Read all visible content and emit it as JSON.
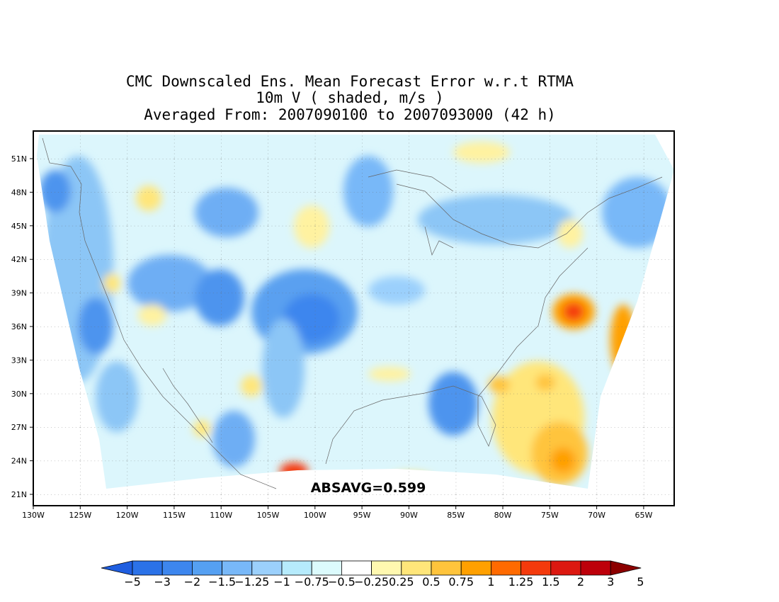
{
  "titles": {
    "line1": "CMC Downscaled Ens. Mean Forecast Error w.r.t RTMA",
    "line2": "10m V ( shaded, m/s )",
    "line3": "Averaged From: 2007090100 to 2007093000 (42 h)"
  },
  "annotation": "ABSAVG=0.599",
  "axes": {
    "lon_labels": [
      "130W",
      "125W",
      "120W",
      "115W",
      "110W",
      "105W",
      "100W",
      "95W",
      "90W",
      "85W",
      "80W",
      "75W",
      "70W",
      "65W"
    ],
    "lat_labels": [
      "51N",
      "48N",
      "45N",
      "42N",
      "39N",
      "36N",
      "33N",
      "30N",
      "27N",
      "24N",
      "21N"
    ]
  },
  "colorbar": {
    "labels": [
      "-5",
      "-3",
      "-2",
      "-1.5",
      "-1.25",
      "-1",
      "-0.75",
      "-0.5",
      "-0.25",
      "0.25",
      "0.5",
      "0.75",
      "1",
      "1.25",
      "1.5",
      "2",
      "3",
      "5"
    ],
    "colors": [
      "#1f5ee0",
      "#2b72e8",
      "#3d86ee",
      "#55a0f2",
      "#78b8f8",
      "#9bd0fc",
      "#b6ebfc",
      "#dcfbfd",
      "#ffffff",
      "#fff8b0",
      "#ffe67a",
      "#ffc43c",
      "#ffa000",
      "#ff6a00",
      "#f43a0c",
      "#dc1810",
      "#bd000a",
      "#8c0000"
    ]
  }
}
